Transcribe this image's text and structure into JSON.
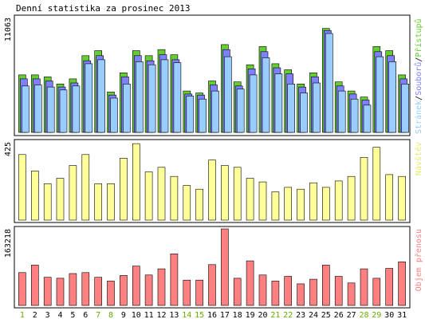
{
  "title": "Denní statistika za prosinec 2013",
  "colors": {
    "background": "#ffffff",
    "panel_border": "#000000",
    "pages": "#99ccff",
    "files": "#8080ff",
    "hits": "#66cc33",
    "visits": "#ffff99",
    "traffic": "#ff8080",
    "weekday_label": "#000000",
    "weekend_label": "#66aa00"
  },
  "chart_data": [
    {
      "type": "bar",
      "panel": "top",
      "ymax_label": "11063",
      "ylim": [
        0,
        11063
      ],
      "legend": {
        "pages": "Stránek",
        "files": "Souborů",
        "hits": "Přístupů",
        "separator": "/"
      },
      "categories": [
        "1",
        "2",
        "3",
        "4",
        "5",
        "6",
        "7",
        "8",
        "9",
        "10",
        "11",
        "12",
        "13",
        "14",
        "15",
        "16",
        "17",
        "18",
        "19",
        "20",
        "21",
        "22",
        "23",
        "24",
        "25",
        "26",
        "27",
        "28",
        "29",
        "30",
        "31"
      ],
      "series": [
        {
          "name": "Přístupů",
          "key": "hits",
          "values": [
            5700,
            5700,
            5500,
            4800,
            5300,
            7600,
            8100,
            4000,
            5900,
            8100,
            7600,
            8200,
            7700,
            4100,
            3900,
            5100,
            8700,
            5000,
            6700,
            8500,
            6800,
            6200,
            4800,
            5900,
            10300,
            5000,
            4100,
            3500,
            8500,
            8100,
            5700
          ]
        },
        {
          "name": "Souborů",
          "key": "files",
          "values": [
            5300,
            5300,
            5100,
            4500,
            4900,
            7100,
            7600,
            3700,
            5500,
            7600,
            7100,
            7700,
            7200,
            3800,
            3700,
            4700,
            8200,
            4600,
            6300,
            8000,
            6400,
            5800,
            4500,
            5500,
            10100,
            4600,
            3800,
            3200,
            8000,
            7600,
            5300
          ]
        },
        {
          "name": "Stránek",
          "key": "pages",
          "values": [
            4600,
            4700,
            4500,
            4200,
            4600,
            6800,
            7200,
            3400,
            4800,
            7000,
            6700,
            7200,
            6900,
            3600,
            3300,
            4100,
            7500,
            4300,
            5700,
            7400,
            5800,
            4800,
            3900,
            4900,
            9800,
            4100,
            3300,
            2700,
            7500,
            7000,
            4800
          ]
        }
      ]
    },
    {
      "type": "bar",
      "panel": "middle",
      "ymax_label": "425",
      "ylim": [
        0,
        425
      ],
      "legend_label": "Návštěv",
      "categories": [
        "1",
        "2",
        "3",
        "4",
        "5",
        "6",
        "7",
        "8",
        "9",
        "10",
        "11",
        "12",
        "13",
        "14",
        "15",
        "16",
        "17",
        "18",
        "19",
        "20",
        "21",
        "22",
        "23",
        "24",
        "25",
        "26",
        "27",
        "28",
        "29",
        "30",
        "31"
      ],
      "series": [
        {
          "name": "Návštěv",
          "key": "visits",
          "values": [
            360,
            270,
            200,
            230,
            300,
            360,
            200,
            200,
            340,
            420,
            265,
            290,
            240,
            190,
            170,
            330,
            300,
            290,
            230,
            210,
            155,
            180,
            170,
            205,
            180,
            215,
            240,
            345,
            400,
            250,
            240
          ]
        }
      ]
    },
    {
      "type": "bar",
      "panel": "bottom",
      "ymax_label": "163218",
      "ylim": [
        0,
        163218
      ],
      "legend_label": "Objem přenosu",
      "categories": [
        "1",
        "2",
        "3",
        "4",
        "5",
        "6",
        "7",
        "8",
        "9",
        "10",
        "11",
        "12",
        "13",
        "14",
        "15",
        "16",
        "17",
        "18",
        "19",
        "20",
        "21",
        "22",
        "23",
        "24",
        "25",
        "26",
        "27",
        "28",
        "29",
        "30",
        "31"
      ],
      "series": [
        {
          "name": "Objem přenosu",
          "key": "traffic",
          "values": [
            70000,
            86000,
            60000,
            58000,
            68000,
            70000,
            60000,
            52000,
            64000,
            84000,
            65000,
            78000,
            110000,
            54000,
            54000,
            87000,
            163218,
            58000,
            95000,
            65000,
            52000,
            62000,
            46000,
            56000,
            86000,
            62000,
            48000,
            78000,
            58000,
            79000,
            93000
          ]
        }
      ]
    }
  ],
  "x_labels": [
    {
      "text": "1",
      "weekend": true
    },
    {
      "text": "2",
      "weekend": false
    },
    {
      "text": "3",
      "weekend": false
    },
    {
      "text": "4",
      "weekend": false
    },
    {
      "text": "5",
      "weekend": false
    },
    {
      "text": "6",
      "weekend": false
    },
    {
      "text": "7",
      "weekend": true
    },
    {
      "text": "8",
      "weekend": true
    },
    {
      "text": "9",
      "weekend": false
    },
    {
      "text": "10",
      "weekend": false
    },
    {
      "text": "11",
      "weekend": false
    },
    {
      "text": "12",
      "weekend": false
    },
    {
      "text": "13",
      "weekend": false
    },
    {
      "text": "14",
      "weekend": true
    },
    {
      "text": "15",
      "weekend": true
    },
    {
      "text": "16",
      "weekend": false
    },
    {
      "text": "17",
      "weekend": false
    },
    {
      "text": "18",
      "weekend": false
    },
    {
      "text": "19",
      "weekend": false
    },
    {
      "text": "20",
      "weekend": false
    },
    {
      "text": "21",
      "weekend": true
    },
    {
      "text": "22",
      "weekend": true
    },
    {
      "text": "23",
      "weekend": false
    },
    {
      "text": "24",
      "weekend": false
    },
    {
      "text": "25",
      "weekend": false
    },
    {
      "text": "26",
      "weekend": false
    },
    {
      "text": "27",
      "weekend": false
    },
    {
      "text": "28",
      "weekend": true
    },
    {
      "text": "29",
      "weekend": true
    },
    {
      "text": "30",
      "weekend": false
    },
    {
      "text": "31",
      "weekend": false
    }
  ]
}
